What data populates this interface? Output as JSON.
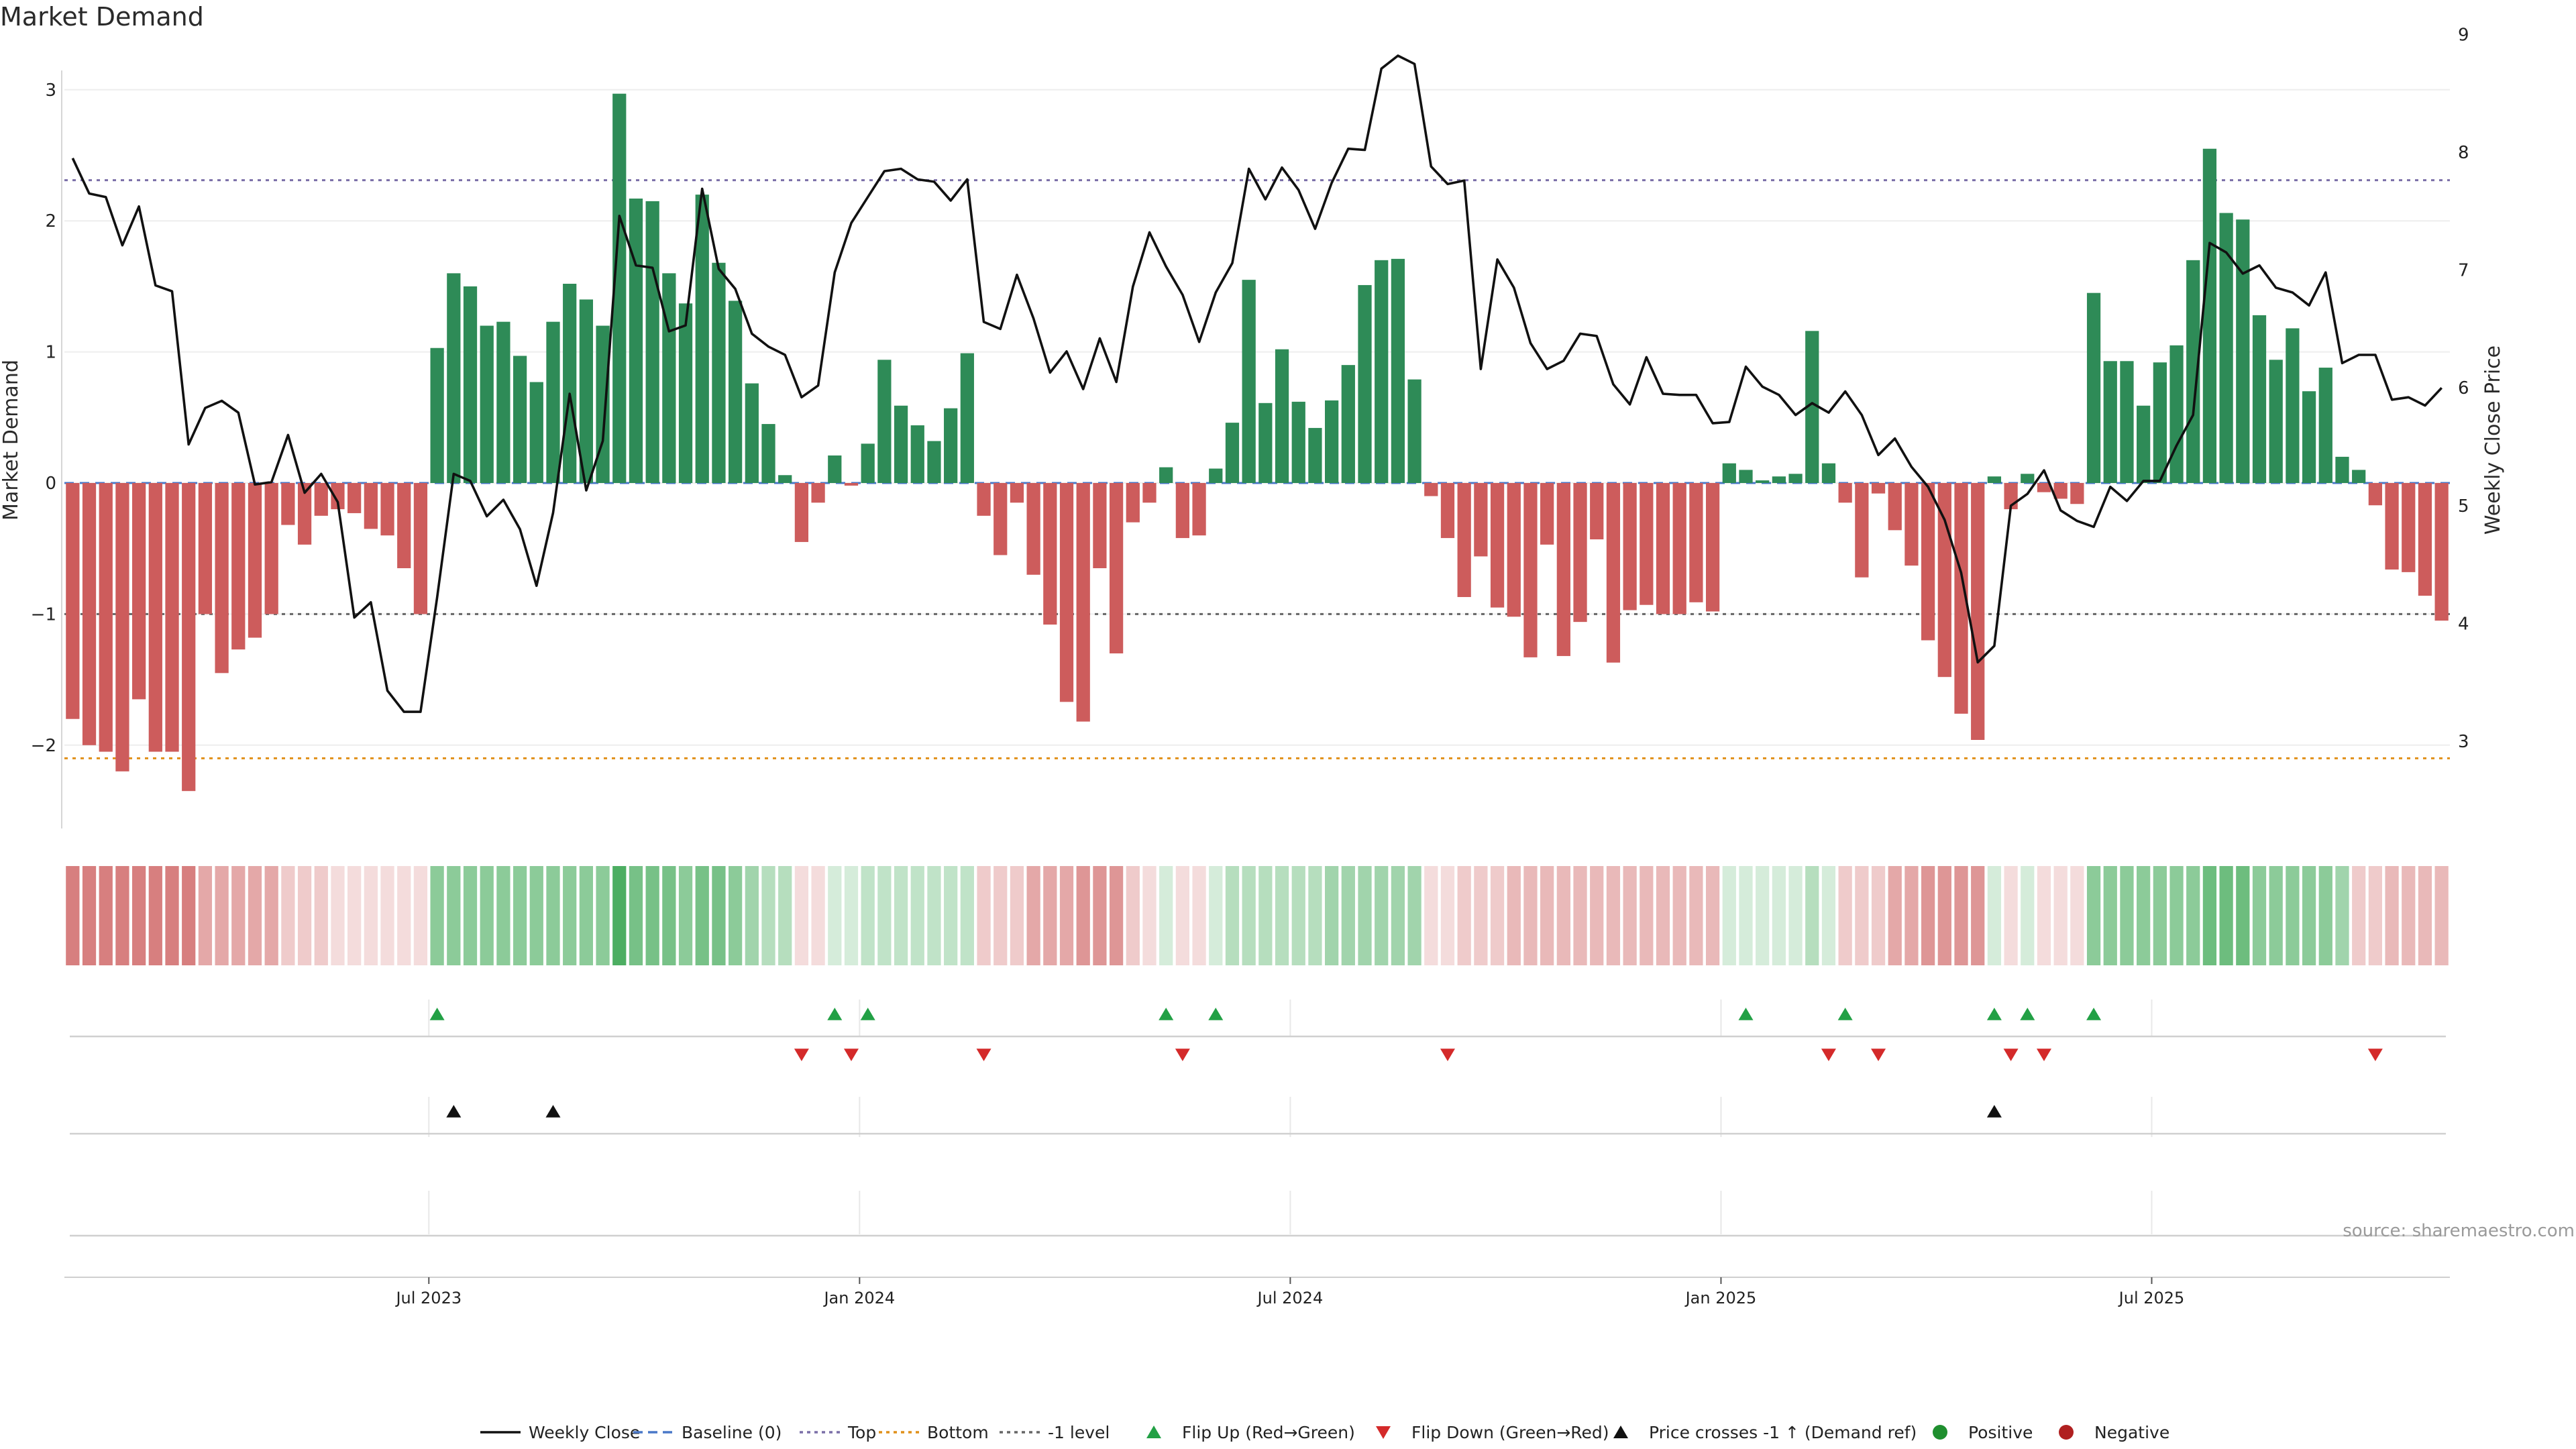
{
  "chart_data": {
    "type": "bar",
    "title": "Market Demand",
    "ylabel": "Market Demand",
    "y2label": "Weekly Close Price",
    "ylim": [
      -2.6,
      3.1
    ],
    "y2lim": [
      2.7,
      9.3
    ],
    "yticks": [
      -2,
      -1,
      0,
      1,
      2,
      3
    ],
    "ytick_labels": [
      "−2",
      "−1",
      "0",
      "1",
      "2",
      "3"
    ],
    "y2ticks": [
      3,
      4,
      5,
      6,
      7,
      8,
      9
    ],
    "date_ticks": [
      {
        "label": "Jul 2023",
        "week": 22
      },
      {
        "label": "Jan 2024",
        "week": 48
      },
      {
        "label": "Jul 2024",
        "week": 74
      },
      {
        "label": "Jan 2025",
        "week": 100
      },
      {
        "label": "Jul 2025",
        "week": 126
      }
    ],
    "reference_lines": {
      "baseline": 0,
      "top": 2.31,
      "bottom": -2.1,
      "minus_one": -1
    },
    "weeks": 144,
    "demand_values": [
      -1.8,
      -2.0,
      -2.05,
      -2.2,
      -1.65,
      -2.05,
      -2.05,
      -2.35,
      -1.0,
      -1.45,
      -1.27,
      -1.18,
      -1.0,
      -0.32,
      -0.47,
      -0.25,
      -0.2,
      -0.23,
      -0.35,
      -0.4,
      -0.65,
      -1.0,
      1.03,
      1.6,
      1.5,
      1.2,
      1.23,
      0.97,
      0.77,
      1.23,
      1.52,
      1.4,
      1.2,
      2.97,
      2.17,
      2.15,
      1.6,
      1.37,
      2.2,
      1.68,
      1.39,
      0.76,
      0.45,
      0.06,
      -0.45,
      -0.15,
      0.21,
      -0.02,
      0.3,
      0.94,
      0.59,
      0.44,
      0.32,
      0.57,
      0.99,
      -0.25,
      -0.55,
      -0.15,
      -0.7,
      -1.08,
      -1.67,
      -1.82,
      -0.65,
      -1.3,
      -0.3,
      -0.15,
      0.12,
      -0.42,
      -0.4,
      0.11,
      0.46,
      1.55,
      0.61,
      1.02,
      0.62,
      0.42,
      0.63,
      0.9,
      1.51,
      1.7,
      1.71,
      0.79,
      -0.1,
      -0.42,
      -0.87,
      -0.56,
      -0.95,
      -1.02,
      -1.33,
      -0.47,
      -1.32,
      -1.06,
      -0.43,
      -1.37,
      -0.97,
      -0.93,
      -1.0,
      -1.0,
      -0.91,
      -0.98,
      0.15,
      0.1,
      0.02,
      0.05,
      0.07,
      1.16,
      0.15,
      -0.15,
      -0.72,
      -0.08,
      -0.36,
      -0.63,
      -1.2,
      -1.48,
      -1.76,
      -1.96,
      0.05,
      -0.2,
      0.07,
      -0.07,
      -0.12,
      -0.16,
      1.45,
      0.93,
      0.93,
      0.59,
      0.92,
      1.05,
      1.7,
      2.55,
      2.06,
      2.01,
      1.28,
      0.94,
      1.18,
      0.7,
      0.88,
      0.2,
      0.1,
      -0.17,
      -0.66,
      -0.68,
      -0.86,
      -1.05
    ],
    "close_values": [
      7.95,
      7.65,
      7.62,
      7.21,
      7.54,
      6.87,
      6.82,
      5.52,
      5.83,
      5.89,
      5.79,
      5.18,
      5.2,
      5.6,
      5.11,
      5.27,
      5.03,
      4.05,
      4.18,
      3.43,
      3.25,
      3.25,
      4.22,
      5.27,
      5.21,
      4.91,
      5.05,
      4.8,
      4.32,
      4.94,
      5.95,
      5.13,
      5.55,
      7.46,
      7.04,
      7.02,
      6.48,
      6.53,
      7.69,
      7.01,
      6.84,
      6.46,
      6.35,
      6.28,
      5.92,
      6.02,
      6.98,
      7.4,
      7.62,
      7.84,
      7.86,
      7.77,
      7.75,
      7.59,
      7.77,
      6.56,
      6.5,
      6.96,
      6.59,
      6.13,
      6.31,
      5.99,
      6.42,
      6.05,
      6.86,
      7.32,
      7.03,
      6.79,
      6.39,
      6.81,
      7.06,
      7.86,
      7.6,
      7.87,
      7.68,
      7.35,
      7.74,
      8.03,
      8.02,
      8.71,
      8.82,
      8.75,
      7.88,
      7.73,
      7.76,
      6.16,
      7.09,
      6.85,
      6.38,
      6.16,
      6.23,
      6.46,
      6.44,
      6.03,
      5.86,
      6.26,
      5.95,
      5.94,
      5.94,
      5.7,
      5.71,
      6.18,
      6.01,
      5.94,
      5.77,
      5.87,
      5.79,
      5.97,
      5.77,
      5.43,
      5.57,
      5.33,
      5.16,
      4.88,
      4.43,
      3.67,
      3.81,
      5.0,
      5.1,
      5.3,
      4.96,
      4.87,
      4.82,
      5.16,
      5.04,
      5.21,
      5.21,
      5.51,
      5.77,
      7.23,
      7.15,
      6.97,
      7.04,
      6.85,
      6.81,
      6.7,
      6.98,
      6.21,
      6.28,
      6.28,
      5.9,
      5.92,
      5.85,
      6.0
    ],
    "heat_values": [
      -0.73,
      -0.73,
      -0.73,
      -0.73,
      -0.73,
      -0.73,
      -0.73,
      -0.73,
      -0.5,
      -0.5,
      -0.5,
      -0.5,
      -0.5,
      -0.3,
      -0.3,
      -0.3,
      -0.2,
      -0.2,
      -0.2,
      -0.2,
      -0.2,
      -0.2,
      0.55,
      0.55,
      0.55,
      0.55,
      0.55,
      0.55,
      0.55,
      0.55,
      0.55,
      0.55,
      0.55,
      0.85,
      0.65,
      0.65,
      0.65,
      0.55,
      0.65,
      0.65,
      0.55,
      0.45,
      0.35,
      0.35,
      -0.2,
      -0.2,
      0.2,
      0.2,
      0.3,
      0.3,
      0.3,
      0.3,
      0.3,
      0.3,
      0.3,
      -0.3,
      -0.3,
      -0.3,
      -0.5,
      -0.5,
      -0.5,
      -0.6,
      -0.6,
      -0.6,
      -0.3,
      -0.2,
      0.2,
      -0.2,
      -0.2,
      0.2,
      0.35,
      0.35,
      0.35,
      0.35,
      0.35,
      0.35,
      0.45,
      0.45,
      0.45,
      0.45,
      0.45,
      0.45,
      -0.2,
      -0.2,
      -0.3,
      -0.3,
      -0.3,
      -0.4,
      -0.4,
      -0.4,
      -0.4,
      -0.4,
      -0.4,
      -0.4,
      -0.4,
      -0.4,
      -0.4,
      -0.4,
      -0.4,
      -0.4,
      0.2,
      0.2,
      0.2,
      0.2,
      0.2,
      0.35,
      0.2,
      -0.3,
      -0.3,
      -0.3,
      -0.5,
      -0.5,
      -0.6,
      -0.6,
      -0.6,
      -0.6,
      0.2,
      -0.2,
      0.2,
      -0.2,
      -0.2,
      -0.2,
      0.55,
      0.55,
      0.55,
      0.55,
      0.55,
      0.55,
      0.55,
      0.7,
      0.7,
      0.7,
      0.55,
      0.55,
      0.55,
      0.55,
      0.55,
      0.45,
      -0.3,
      -0.3,
      -0.4,
      -0.4,
      -0.4,
      -0.4
    ],
    "flip_up_weeks": [
      22,
      46,
      48,
      66,
      69,
      101,
      107,
      116,
      118,
      122
    ],
    "flip_down_weeks": [
      44,
      47,
      55,
      67,
      83,
      106,
      109,
      117,
      119,
      139
    ],
    "price_cross_weeks": [
      23,
      29,
      116
    ],
    "legend": [
      {
        "label": "Weekly Close",
        "kind": "line"
      },
      {
        "label": "Baseline (0)",
        "kind": "dash-blue"
      },
      {
        "label": "Top",
        "kind": "dot-purple"
      },
      {
        "label": "Bottom",
        "kind": "dot-orange"
      },
      {
        "label": "-1 level",
        "kind": "dot-gray"
      },
      {
        "label": "Flip Up (Red→Green)",
        "kind": "tri-up-green"
      },
      {
        "label": "Flip Down (Green→Red)",
        "kind": "tri-down-red"
      },
      {
        "label": "Price crosses -1 ↑ (Demand ref)",
        "kind": "tri-up-black"
      },
      {
        "label": "Positive",
        "kind": "dot-green"
      },
      {
        "label": "Negative",
        "kind": "dot-red"
      }
    ],
    "source_note": "source: sharemaestro.com"
  },
  "colors": {
    "positive": "#2e8b57",
    "negative": "#cd5c5c",
    "flip_up": "#22a045",
    "flip_down": "#d42a2a",
    "top_line": "#7b6fa8",
    "bottom_line": "#e0901a",
    "baseline": "#4a78c8",
    "minus_one": "#666666"
  }
}
